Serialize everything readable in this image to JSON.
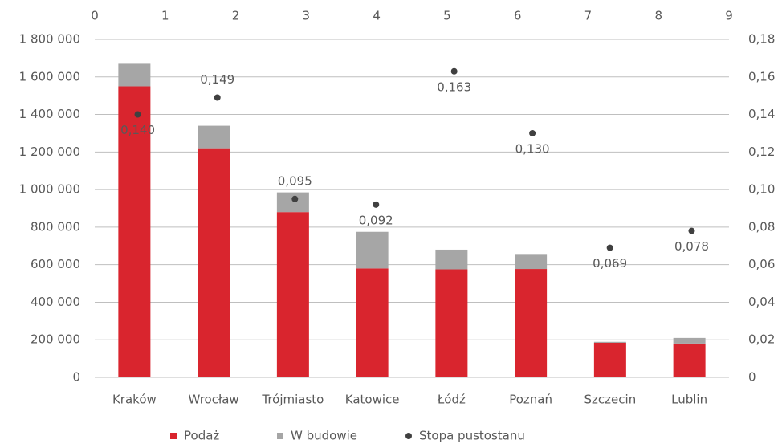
{
  "chart_data": {
    "type": "bar",
    "stacked": true,
    "grid": true,
    "legend": "bottom",
    "categories": [
      "Kraków",
      "Wrocław",
      "Trójmiasto",
      "Katowice",
      "Łódź",
      "Poznań",
      "Szczecin",
      "Lublin"
    ],
    "series": [
      {
        "name": "Podaż",
        "color": "#d9252e",
        "values": [
          1550000,
          1220000,
          880000,
          580000,
          575000,
          577000,
          184000,
          180000
        ]
      },
      {
        "name": "W budowie",
        "color": "#a6a6a6",
        "values": [
          120000,
          120000,
          105000,
          195000,
          105000,
          80000,
          5000,
          30000
        ]
      },
      {
        "name": "Stopa pustostanu",
        "type": "scatter",
        "axis": "y2",
        "color": "#404040",
        "x": [
          0.61,
          1.74,
          2.84,
          3.99,
          5.1,
          6.21,
          7.31,
          8.47
        ],
        "values": [
          0.14,
          0.149,
          0.095,
          0.092,
          0.163,
          0.13,
          0.069,
          0.078
        ],
        "value_labels": [
          "0,140",
          "0,149",
          "0,095",
          "0,092",
          "0,163",
          "0,130",
          "0,069",
          "0,078"
        ]
      }
    ],
    "ylim": [
      0,
      1800000
    ],
    "yticks": [
      0,
      {
        "value": 200000,
        "label": "200 000"
      },
      {
        "value": 400000,
        "label": "400 000"
      },
      {
        "value": 600000,
        "label": "600 000"
      },
      {
        "value": 800000,
        "label": "800 000"
      },
      {
        "value": 1000000,
        "label": "1 000 000"
      },
      {
        "value": 1200000,
        "label": "1 200 000"
      },
      {
        "value": 1400000,
        "label": "1 400 000"
      },
      {
        "value": 1600000,
        "label": "1 600 000"
      },
      {
        "value": 1800000,
        "label": "1 800 000"
      }
    ],
    "y2lim": [
      0,
      0.18
    ],
    "y2ticks": [
      0,
      {
        "value": 0.02,
        "label": "0,02"
      },
      {
        "value": 0.04,
        "label": "0,04"
      },
      {
        "value": 0.06,
        "label": "0,06"
      },
      {
        "value": 0.08,
        "label": "0,08"
      },
      {
        "value": 0.1,
        "label": "0,10"
      },
      {
        "value": 0.12,
        "label": "0,12"
      },
      {
        "value": 0.14,
        "label": "0,14"
      },
      {
        "value": 0.16,
        "label": "0,16"
      },
      {
        "value": 0.18,
        "label": "0,18"
      }
    ],
    "x2lim": [
      0,
      9
    ],
    "x2ticks": [
      0,
      1,
      2,
      3,
      4,
      5,
      6,
      7,
      8,
      9
    ]
  }
}
